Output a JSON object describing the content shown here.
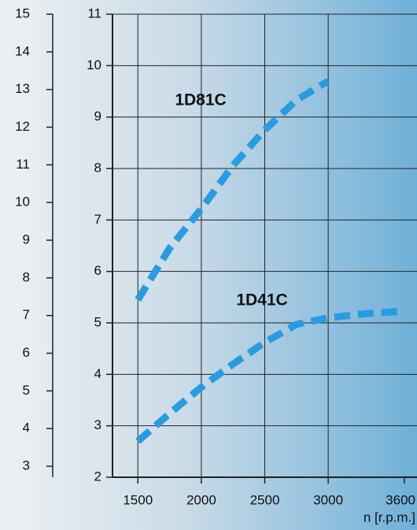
{
  "chart_data": {
    "type": "line",
    "x": [
      1500,
      1750,
      2000,
      2250,
      2500,
      2750,
      3000,
      3300,
      3600
    ],
    "series": [
      {
        "name": "1D81C",
        "color": "#2b9be0",
        "values": [
          5.45,
          6.45,
          7.22,
          8.06,
          8.75,
          9.33,
          9.7,
          null,
          null
        ]
      },
      {
        "name": "1D41C",
        "color": "#2b9be0",
        "values": [
          2.7,
          3.24,
          3.75,
          4.2,
          4.62,
          4.97,
          5.1,
          5.18,
          5.23
        ]
      }
    ],
    "xlim": [
      1300,
      3700
    ],
    "xticks": [
      1500,
      2000,
      2500,
      3000,
      3600
    ],
    "ylim": [
      2,
      11
    ],
    "yticks": [
      2,
      3,
      4,
      5,
      6,
      7,
      8,
      9,
      10,
      11
    ],
    "y2lim": [
      3,
      15
    ],
    "y2ticks": [
      3,
      4,
      5,
      6,
      7,
      8,
      9,
      10,
      11,
      12,
      13,
      14,
      15
    ],
    "x_label": "n [r.p.m.]",
    "grid": true
  }
}
